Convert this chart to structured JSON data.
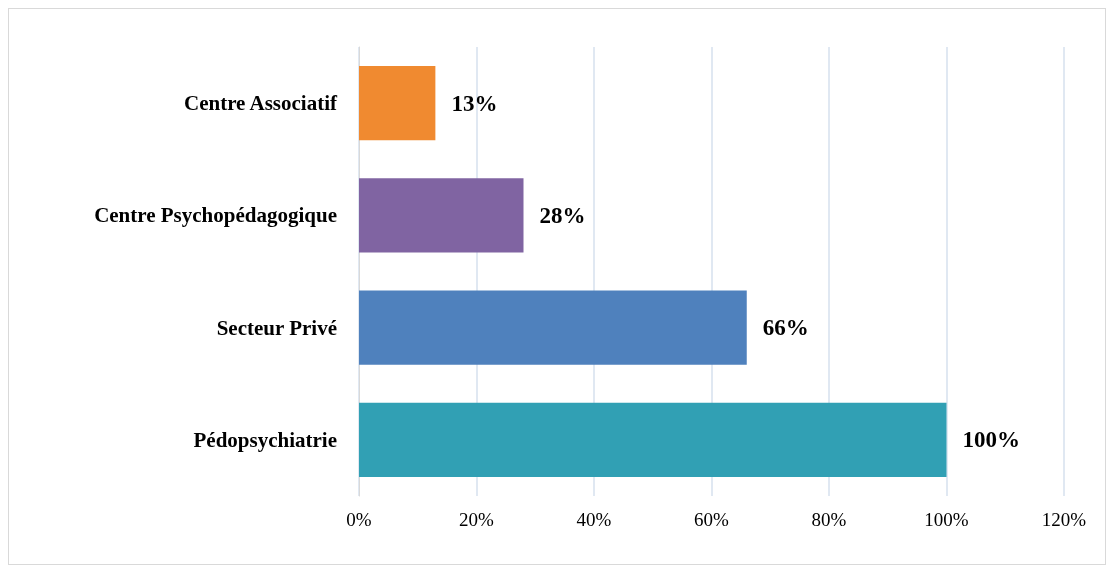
{
  "chart_data": {
    "type": "bar",
    "orientation": "horizontal",
    "categories": [
      "Centre Associatif",
      "Centre Psychopédagogique",
      "Secteur Privé",
      "Pédopsychiatrie"
    ],
    "values": [
      13,
      28,
      66,
      100
    ],
    "colors": [
      "#f08a30",
      "#8064a2",
      "#4f81bd",
      "#31a0b4"
    ],
    "value_labels": [
      "13%",
      "28%",
      "66%",
      "100%"
    ],
    "xlim": [
      0,
      120
    ],
    "xticks": [
      {
        "value": 0,
        "label": "0%"
      },
      {
        "value": 20,
        "label": "20%"
      },
      {
        "value": 40,
        "label": "40%"
      },
      {
        "value": 60,
        "label": "60%"
      },
      {
        "value": 80,
        "label": "80%"
      },
      {
        "value": 100,
        "label": "100%"
      },
      {
        "value": 120,
        "label": "120%"
      }
    ],
    "grid": "x"
  }
}
